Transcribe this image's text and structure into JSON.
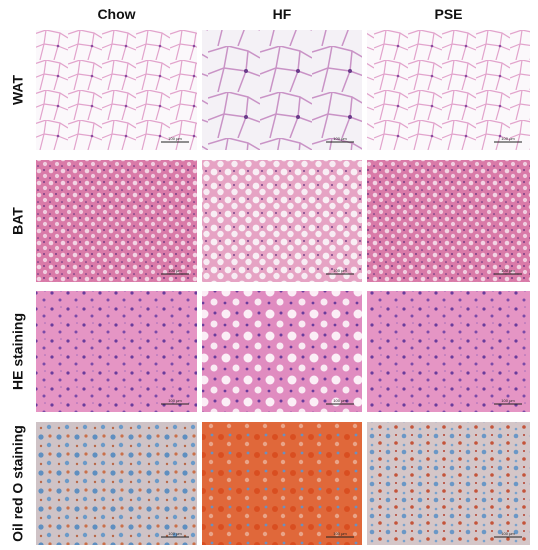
{
  "columns": [
    "Chow",
    "HF",
    "PSE"
  ],
  "rows": [
    "WAT",
    "BAT",
    "HE staining",
    "Oil red O staining"
  ],
  "scale_bar": "100 μm"
}
